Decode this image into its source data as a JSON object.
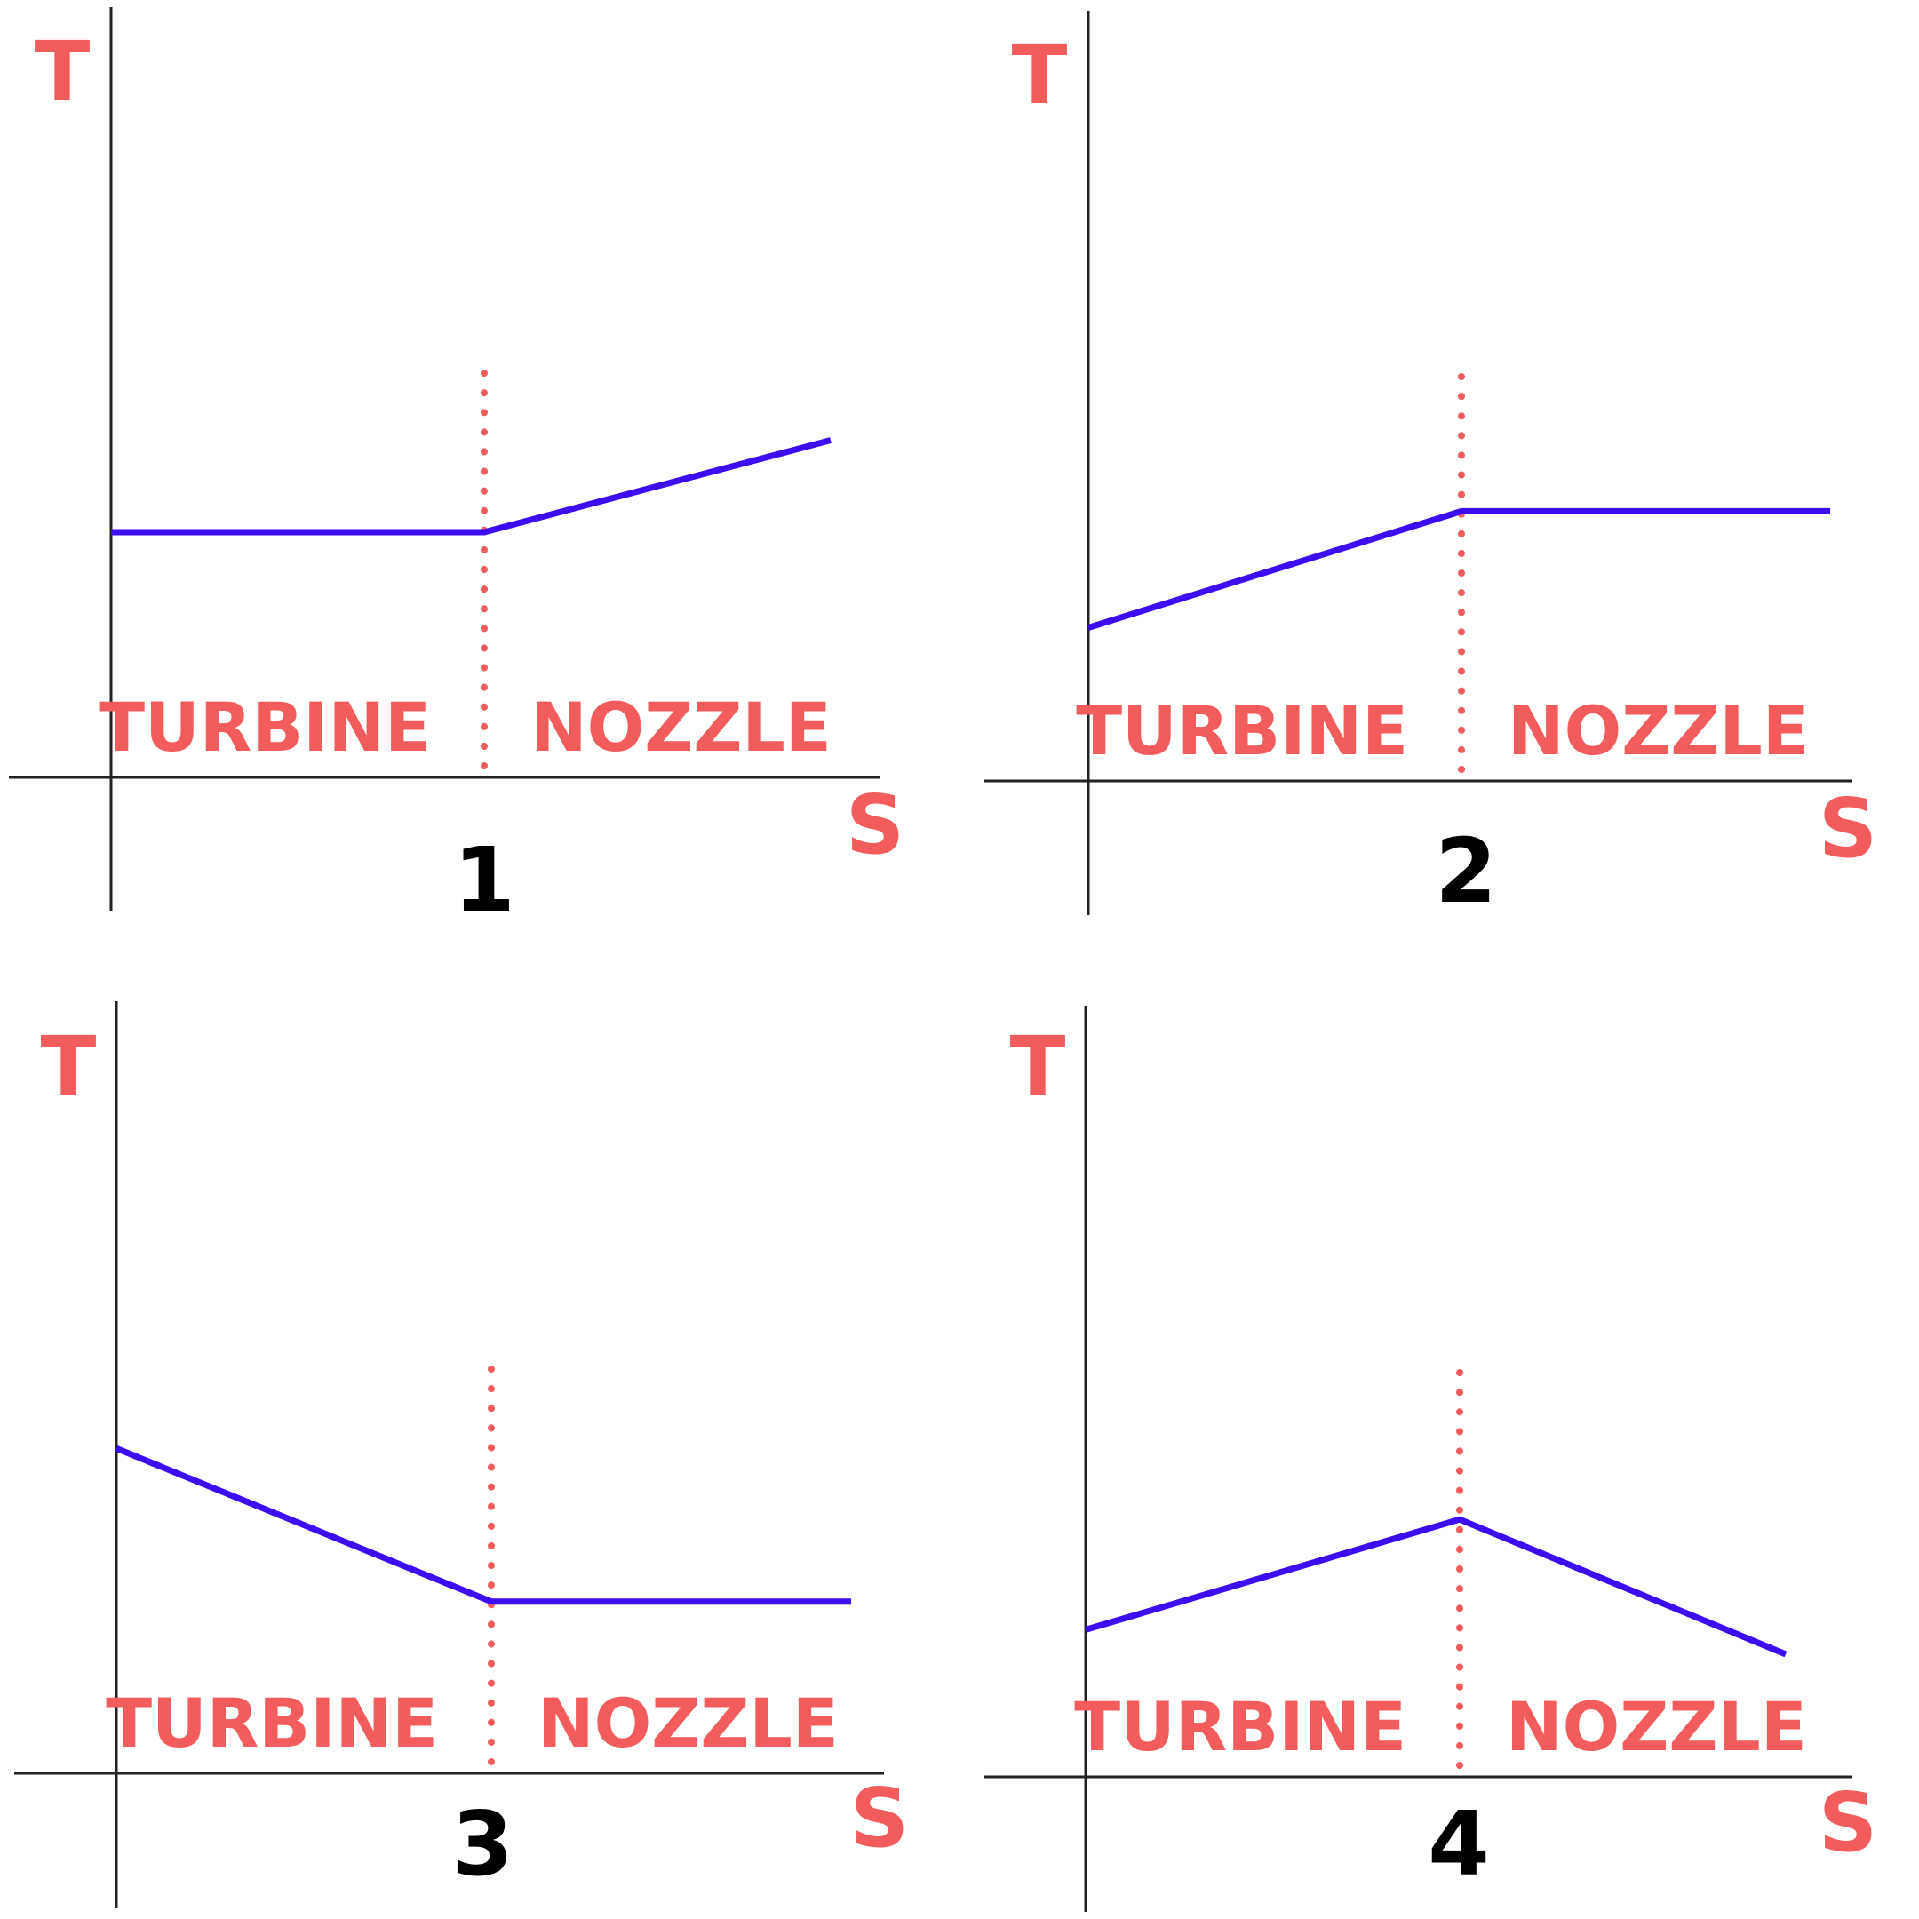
{
  "colors": {
    "axis": "#222222",
    "curve": "#3b0df0",
    "label": "#f25c5c",
    "number": "#000000",
    "divider": "#f25c5c"
  },
  "panels": [
    {
      "number": "1",
      "y_axis_label": "T",
      "x_axis_label": "S",
      "left_region_label": "TURBINE",
      "right_region_label": "NOZZLE",
      "curve": {
        "turbine": "constant",
        "nozzle": "rising"
      },
      "levels": {
        "start": 0.4,
        "boundary": 0.4,
        "end": 0.55
      }
    },
    {
      "number": "2",
      "y_axis_label": "T",
      "x_axis_label": "S",
      "left_region_label": "TURBINE",
      "right_region_label": "NOZZLE",
      "curve": {
        "turbine": "rising",
        "nozzle": "constant"
      },
      "levels": {
        "start": 0.25,
        "boundary": 0.44,
        "end": 0.44
      }
    },
    {
      "number": "3",
      "y_axis_label": "T",
      "x_axis_label": "S",
      "left_region_label": "TURBINE",
      "right_region_label": "NOZZLE",
      "curve": {
        "turbine": "falling",
        "nozzle": "constant"
      },
      "levels": {
        "start": 0.53,
        "boundary": 0.28,
        "end": 0.28
      }
    },
    {
      "number": "4",
      "y_axis_label": "T",
      "x_axis_label": "S",
      "left_region_label": "TURBINE",
      "right_region_label": "NOZZLE",
      "curve": {
        "turbine": "rising",
        "nozzle": "falling"
      },
      "levels": {
        "start": 0.24,
        "boundary": 0.42,
        "end": 0.2
      }
    }
  ]
}
